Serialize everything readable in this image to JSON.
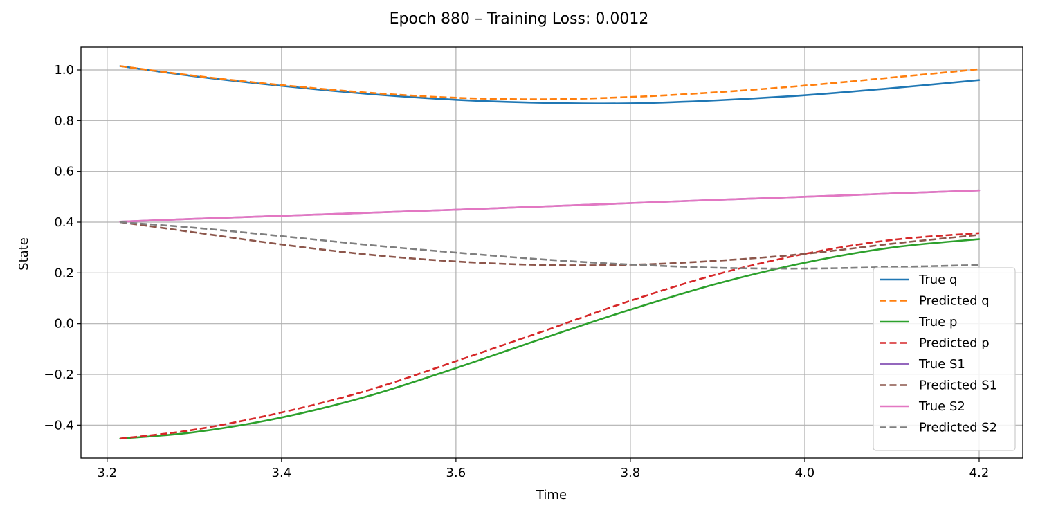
{
  "chart_data": {
    "type": "line",
    "title": "Epoch 880 – Training Loss: 0.0012",
    "xlabel": "Time",
    "ylabel": "State",
    "xlim": [
      3.17,
      4.25
    ],
    "ylim": [
      -0.53,
      1.09
    ],
    "xticks": [
      3.2,
      3.4,
      3.6,
      3.8,
      4.0,
      4.2
    ],
    "xtick_labels": [
      "3.2",
      "3.4",
      "3.6",
      "3.8",
      "4.0",
      "4.2"
    ],
    "yticks": [
      -0.4,
      -0.2,
      0.0,
      0.2,
      0.4,
      0.6,
      0.8,
      1.0
    ],
    "ytick_labels": [
      "−0.4",
      "−0.2",
      "0.0",
      "0.2",
      "0.4",
      "0.6",
      "0.8",
      "1.0"
    ],
    "grid": true,
    "legend_position": "lower-right",
    "x": [
      3.215,
      3.3,
      3.4,
      3.5,
      3.6,
      3.7,
      3.8,
      3.9,
      4.0,
      4.1,
      4.2
    ],
    "series": [
      {
        "name": "True q",
        "color": "#1f77b4",
        "style": "solid",
        "values": [
          1.015,
          0.975,
          0.937,
          0.905,
          0.882,
          0.87,
          0.868,
          0.88,
          0.9,
          0.928,
          0.96
        ]
      },
      {
        "name": "Predicted q",
        "color": "#ff7f0e",
        "style": "dashed",
        "values": [
          1.015,
          0.977,
          0.94,
          0.91,
          0.89,
          0.884,
          0.893,
          0.912,
          0.938,
          0.97,
          1.003
        ]
      },
      {
        "name": "True p",
        "color": "#2ca02c",
        "style": "solid",
        "values": [
          -0.453,
          -0.428,
          -0.37,
          -0.285,
          -0.175,
          -0.058,
          0.055,
          0.158,
          0.24,
          0.3,
          0.333
        ]
      },
      {
        "name": "Predicted p",
        "color": "#d62728",
        "style": "dashed",
        "values": [
          -0.453,
          -0.418,
          -0.35,
          -0.262,
          -0.148,
          -0.03,
          0.09,
          0.195,
          0.275,
          0.33,
          0.357
        ]
      },
      {
        "name": "True S1",
        "color": "#9467bd",
        "style": "solid",
        "values": [
          0.402,
          0.413,
          0.425,
          0.437,
          0.449,
          0.462,
          0.475,
          0.488,
          0.5,
          0.513,
          0.525
        ]
      },
      {
        "name": "Predicted S1",
        "color": "#8c564b",
        "style": "dashed",
        "values": [
          0.4,
          0.36,
          0.312,
          0.272,
          0.245,
          0.231,
          0.232,
          0.248,
          0.275,
          0.315,
          0.35
        ]
      },
      {
        "name": "True S2",
        "color": "#e377c2",
        "style": "solid",
        "values": [
          0.402,
          0.413,
          0.425,
          0.437,
          0.449,
          0.462,
          0.475,
          0.488,
          0.5,
          0.513,
          0.525
        ]
      },
      {
        "name": "Predicted S2",
        "color": "#7f7f7f",
        "style": "dashed",
        "values": [
          0.4,
          0.378,
          0.345,
          0.31,
          0.28,
          0.253,
          0.233,
          0.22,
          0.217,
          0.223,
          0.231
        ]
      }
    ]
  }
}
